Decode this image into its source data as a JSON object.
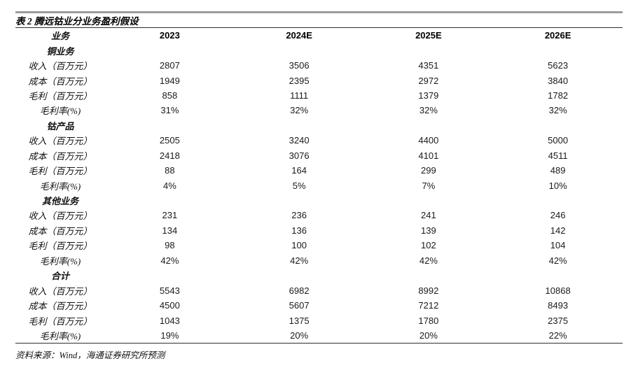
{
  "title": "表 2 腾远钴业分业务盈利假设",
  "source": "资料来源：Wind，海通证券研究所预测",
  "colors": {
    "top_rule": "#9c9c9c",
    "divider_rule": "#2e2e2e",
    "text": "#161616"
  },
  "table": {
    "header": [
      "业务",
      "2023",
      "2024E",
      "2025E",
      "2026E"
    ],
    "sections": [
      {
        "name": "铜业务",
        "rows": [
          {
            "label": "收入（百万元）",
            "values": [
              "2807",
              "3506",
              "4351",
              "5623"
            ]
          },
          {
            "label": "成本（百万元）",
            "values": [
              "1949",
              "2395",
              "2972",
              "3840"
            ]
          },
          {
            "label": "毛利（百万元）",
            "values": [
              "858",
              "1111",
              "1379",
              "1782"
            ]
          },
          {
            "label": "毛利率(%)",
            "values": [
              "31%",
              "32%",
              "32%",
              "32%"
            ]
          }
        ]
      },
      {
        "name": "钴产品",
        "rows": [
          {
            "label": "收入（百万元）",
            "values": [
              "2505",
              "3240",
              "4400",
              "5000"
            ]
          },
          {
            "label": "成本（百万元）",
            "values": [
              "2418",
              "3076",
              "4101",
              "4511"
            ]
          },
          {
            "label": "毛利（百万元）",
            "values": [
              "88",
              "164",
              "299",
              "489"
            ]
          },
          {
            "label": "毛利率(%)",
            "values": [
              "4%",
              "5%",
              "7%",
              "10%"
            ]
          }
        ]
      },
      {
        "name": "其他业务",
        "rows": [
          {
            "label": "收入（百万元）",
            "values": [
              "231",
              "236",
              "241",
              "246"
            ]
          },
          {
            "label": "成本（百万元）",
            "values": [
              "134",
              "136",
              "139",
              "142"
            ]
          },
          {
            "label": "毛利（百万元）",
            "values": [
              "98",
              "100",
              "102",
              "104"
            ]
          },
          {
            "label": "毛利率(%)",
            "values": [
              "42%",
              "42%",
              "42%",
              "42%"
            ]
          }
        ]
      },
      {
        "name": "合计",
        "rows": [
          {
            "label": "收入（百万元）",
            "values": [
              "5543",
              "6982",
              "8992",
              "10868"
            ]
          },
          {
            "label": "成本（百万元）",
            "values": [
              "4500",
              "5607",
              "7212",
              "8493"
            ]
          },
          {
            "label": "毛利（百万元）",
            "values": [
              "1043",
              "1375",
              "1780",
              "2375"
            ]
          },
          {
            "label": "毛利率(%)",
            "values": [
              "19%",
              "20%",
              "20%",
              "22%"
            ]
          }
        ]
      }
    ]
  }
}
